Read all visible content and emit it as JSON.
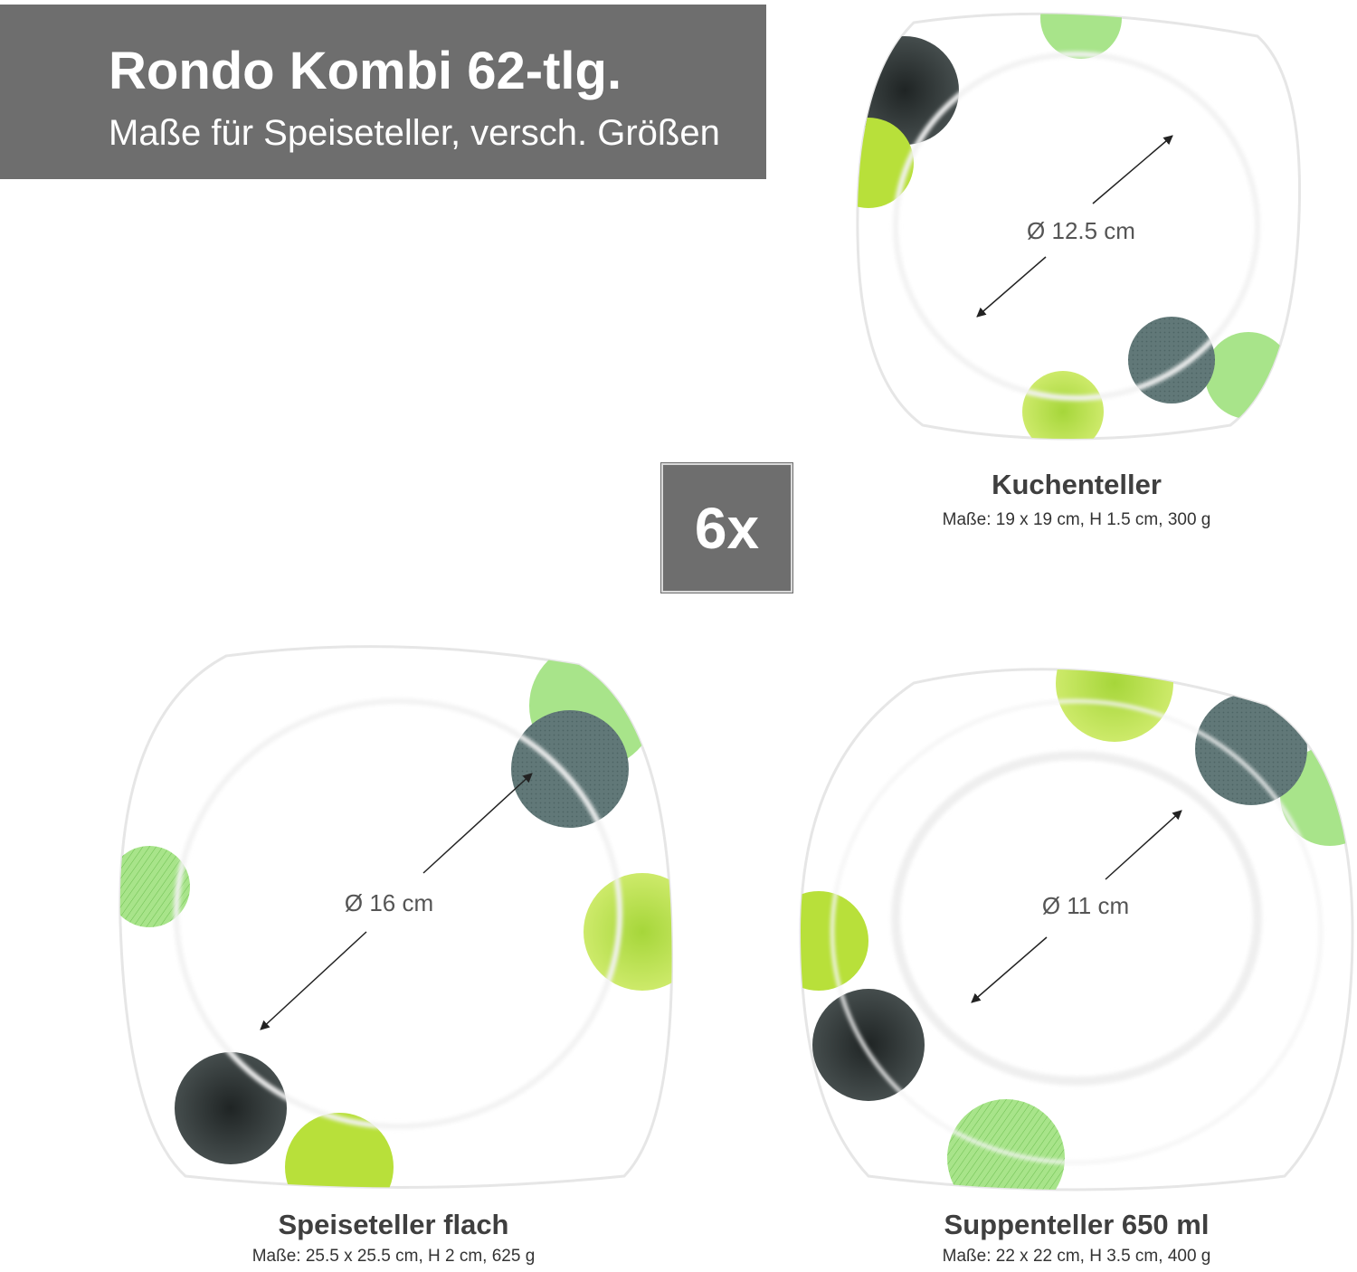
{
  "banner": {
    "title": "Rondo Kombi 62-tlg.",
    "subtitle": "Maße für Speiseteller, versch. Größen"
  },
  "quantity_badge": "6x",
  "colors": {
    "banner": "#6e6e6e",
    "lime": "#b8e03a",
    "light_green": "#9be07a",
    "slate": "#617878",
    "charcoal": "#333a3a"
  },
  "plates": {
    "kuchenteller": {
      "name": "Kuchenteller",
      "dims": "Maße: 19 x 19 cm, H 1.5 cm, 300 g",
      "diameter": "Ø 12.5 cm"
    },
    "speiseteller": {
      "name": "Speiseteller flach",
      "dims": "Maße: 25.5 x 25.5 cm, H 2 cm, 625 g",
      "diameter": "Ø 16 cm"
    },
    "suppenteller": {
      "name": "Suppenteller 650 ml",
      "dims": "Maße: 22 x 22 cm, H 3.5 cm, 400 g",
      "diameter": "Ø 11 cm"
    }
  }
}
